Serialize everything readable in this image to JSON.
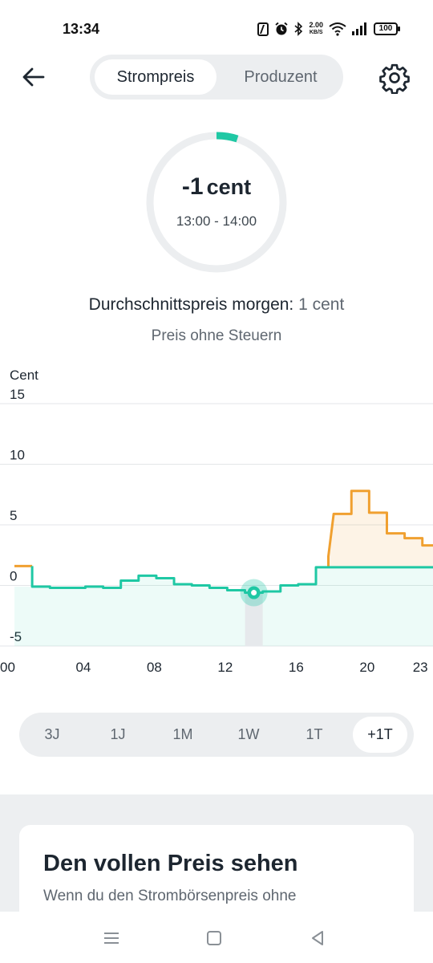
{
  "status_bar": {
    "time": "13:34",
    "speed_value": "2.00",
    "speed_unit": "KB/S",
    "battery": "100"
  },
  "tabs": [
    {
      "label": "Strompreis",
      "active": true
    },
    {
      "label": "Produzent",
      "active": false
    }
  ],
  "gauge": {
    "price_value": "-1",
    "price_unit": "cent",
    "time_range": "13:00 - 14:00",
    "accent_color": "#1fc8a4"
  },
  "summary": {
    "avg_label": "Durchschnittspreis morgen:",
    "avg_value": "1 cent",
    "tax_note": "Preis ohne Steuern"
  },
  "chart_data": {
    "type": "line",
    "ylabel": "Cent",
    "ylim": [
      -5,
      15
    ],
    "yticks": [
      15,
      10,
      5,
      0,
      -5
    ],
    "x_tick_labels": [
      "00",
      "04",
      "08",
      "12",
      "16",
      "20",
      "23"
    ],
    "x_tick_hours": [
      0,
      4,
      8,
      12,
      16,
      20,
      23
    ],
    "xlim": [
      0,
      23.6
    ],
    "grid": true,
    "selected_hour": 13.5,
    "selected_value": -0.6,
    "series": [
      {
        "color": "#1fc8a4",
        "x": [
          0,
          1,
          2,
          3,
          4,
          5,
          6,
          7,
          8,
          9,
          10,
          11,
          12,
          13,
          14,
          15,
          16,
          17
        ],
        "y": [
          -0.1,
          -0.1,
          -0.2,
          -0.2,
          -0.1,
          -0.2,
          0.4,
          0.8,
          0.6,
          0.1,
          0.0,
          -0.2,
          -0.4,
          -0.6,
          -0.5,
          0.0,
          0.1,
          1.5
        ]
      },
      {
        "color": "#f0a030",
        "x": [
          0,
          1,
          17,
          18,
          19,
          20,
          21,
          22,
          23
        ],
        "y": [
          1.6,
          1.6,
          2.4,
          5.9,
          7.8,
          6.0,
          4.3,
          3.9,
          3.3
        ]
      }
    ]
  },
  "time_ranges": [
    {
      "label": "3J",
      "active": false
    },
    {
      "label": "1J",
      "active": false
    },
    {
      "label": "1M",
      "active": false
    },
    {
      "label": "1W",
      "active": false
    },
    {
      "label": "1T",
      "active": false
    },
    {
      "label": "+1T",
      "active": true
    }
  ],
  "card": {
    "title": "Den vollen Preis sehen",
    "text": "Wenn du den Strombörsenpreis ohne"
  },
  "colors": {
    "green": "#1fc8a4",
    "orange": "#f0a030",
    "text": "#1d2630",
    "muted": "#5f6770"
  }
}
